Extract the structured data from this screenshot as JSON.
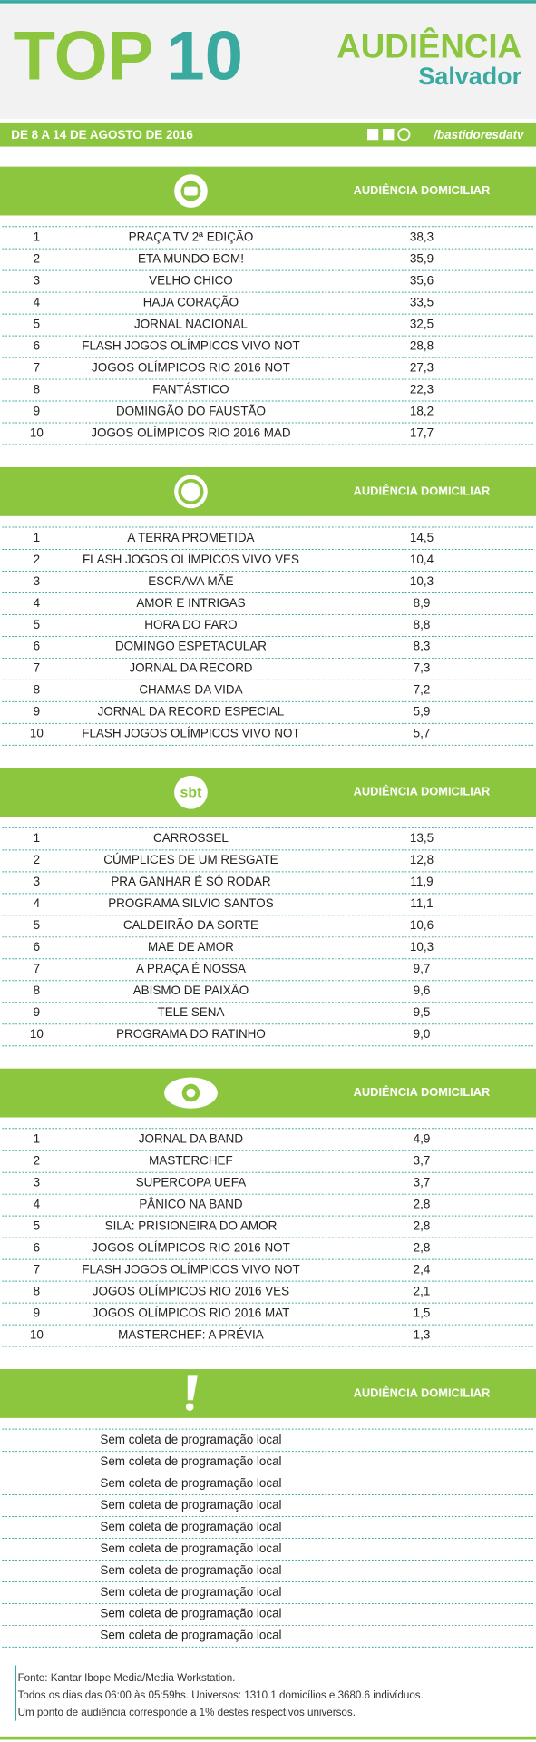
{
  "header": {
    "top": "TOP",
    "ten": "10",
    "brand": "AUDIÊNCIA",
    "city": "Salvador",
    "date": "DE 8 A 14 DE AGOSTO DE 2016",
    "handle": "/bastidoresdatv"
  },
  "sections": [
    {
      "column": "AUDIÊNCIA DOMICILIAR",
      "rows": [
        [
          "1",
          "PRAÇA TV 2ª EDIÇÃO",
          "38,3"
        ],
        [
          "2",
          "ETA MUNDO BOM!",
          "35,9"
        ],
        [
          "3",
          "VELHO CHICO",
          "35,6"
        ],
        [
          "4",
          "HAJA CORAÇÃO",
          "33,5"
        ],
        [
          "5",
          "JORNAL NACIONAL",
          "32,5"
        ],
        [
          "6",
          "FLASH JOGOS OLÍMPICOS VIVO NOT",
          "28,8"
        ],
        [
          "7",
          "JOGOS OLÍMPICOS RIO 2016 NOT",
          "27,3"
        ],
        [
          "8",
          "FANTÁSTICO",
          "22,3"
        ],
        [
          "9",
          "DOMINGÃO DO FAUSTÃO",
          "18,2"
        ],
        [
          "10",
          "JOGOS OLÍMPICOS RIO 2016 MAD",
          "17,7"
        ]
      ]
    },
    {
      "column": "AUDIÊNCIA DOMICILIAR",
      "rows": [
        [
          "1",
          "A TERRA PROMETIDA",
          "14,5"
        ],
        [
          "2",
          "FLASH JOGOS OLÍMPICOS VIVO VES",
          "10,4"
        ],
        [
          "3",
          "ESCRAVA MÃE",
          "10,3"
        ],
        [
          "4",
          "AMOR E INTRIGAS",
          "8,9"
        ],
        [
          "5",
          "HORA DO FARO",
          "8,8"
        ],
        [
          "6",
          "DOMINGO ESPETACULAR",
          "8,3"
        ],
        [
          "7",
          "JORNAL DA RECORD",
          "7,3"
        ],
        [
          "8",
          "CHAMAS DA VIDA",
          "7,2"
        ],
        [
          "9",
          "JORNAL DA RECORD ESPECIAL",
          "5,9"
        ],
        [
          "10",
          "FLASH JOGOS OLÍMPICOS VIVO NOT",
          "5,7"
        ]
      ]
    },
    {
      "logo": "sbt",
      "column": "AUDIÊNCIA DOMICILIAR",
      "rows": [
        [
          "1",
          "CARROSSEL",
          "13,5"
        ],
        [
          "2",
          "CÚMPLICES DE UM RESGATE",
          "12,8"
        ],
        [
          "3",
          "PRA GANHAR É SÓ RODAR",
          "11,9"
        ],
        [
          "4",
          "PROGRAMA SILVIO SANTOS",
          "11,1"
        ],
        [
          "5",
          "CALDEIRÃO DA SORTE",
          "10,6"
        ],
        [
          "6",
          "MAE DE AMOR",
          "10,3"
        ],
        [
          "7",
          "A PRAÇA É NOSSA",
          "9,7"
        ],
        [
          "8",
          "ABISMO DE PAIXÃO",
          "9,6"
        ],
        [
          "9",
          "TELE SENA",
          "9,5"
        ],
        [
          "10",
          "PROGRAMA DO RATINHO",
          "9,0"
        ]
      ]
    },
    {
      "column": "AUDIÊNCIA DOMICILIAR",
      "rows": [
        [
          "1",
          "JORNAL DA BAND",
          "4,9"
        ],
        [
          "2",
          "MASTERCHEF",
          "3,7"
        ],
        [
          "3",
          "SUPERCOPA UEFA",
          "3,7"
        ],
        [
          "4",
          "PÂNICO NA BAND",
          "2,8"
        ],
        [
          "5",
          "SILA: PRISIONEIRA DO AMOR",
          "2,8"
        ],
        [
          "6",
          "JOGOS OLÍMPICOS RIO 2016 NOT",
          "2,8"
        ],
        [
          "7",
          "FLASH JOGOS OLÍMPICOS VIVO NOT",
          "2,4"
        ],
        [
          "8",
          "JOGOS OLÍMPICOS RIO 2016 VES",
          "2,1"
        ],
        [
          "9",
          "JOGOS OLÍMPICOS RIO 2016 MAT",
          "1,5"
        ],
        [
          "10",
          "MASTERCHEF: A PRÉVIA",
          "1,3"
        ]
      ]
    },
    {
      "column": "AUDIÊNCIA DOMICILIAR",
      "rows": [
        [
          "Sem coleta de programação local"
        ],
        [
          "Sem coleta de programação local"
        ],
        [
          "Sem coleta de programação local"
        ],
        [
          "Sem coleta de programação local"
        ],
        [
          "Sem coleta de programação local"
        ],
        [
          "Sem coleta de programação local"
        ],
        [
          "Sem coleta de programação local"
        ],
        [
          "Sem coleta de programação local"
        ],
        [
          "Sem coleta de programação local"
        ],
        [
          "Sem coleta de programação local"
        ]
      ]
    }
  ],
  "footer": [
    "Fonte: Kantar Ibope Media/Media Workstation.",
    "Todos os dias das 06:00 às 05:59hs. Universos: 1310.1 domicílios e 3680.6 indivíduos.",
    "Um ponto de audiência corresponde a 1% destes respectivos universos."
  ]
}
